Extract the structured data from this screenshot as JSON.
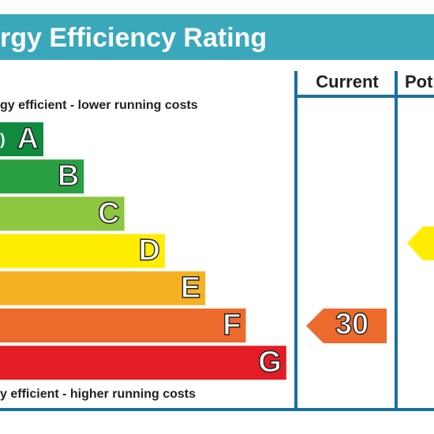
{
  "header": {
    "title": "rgy Efficiency Rating"
  },
  "columns": [
    "Current",
    "Pot"
  ],
  "top_note": "gy efficient - lower running costs",
  "bottom_note": "y efficient - higher running costs",
  "bands": [
    {
      "range": ")",
      "letter": "A"
    },
    {
      "letter": "B"
    },
    {
      "letter": "C"
    },
    {
      "letter": "D"
    },
    {
      "letter": "E"
    },
    {
      "letter": "F"
    },
    {
      "letter": "G"
    }
  ],
  "current": {
    "value": "30"
  }
}
